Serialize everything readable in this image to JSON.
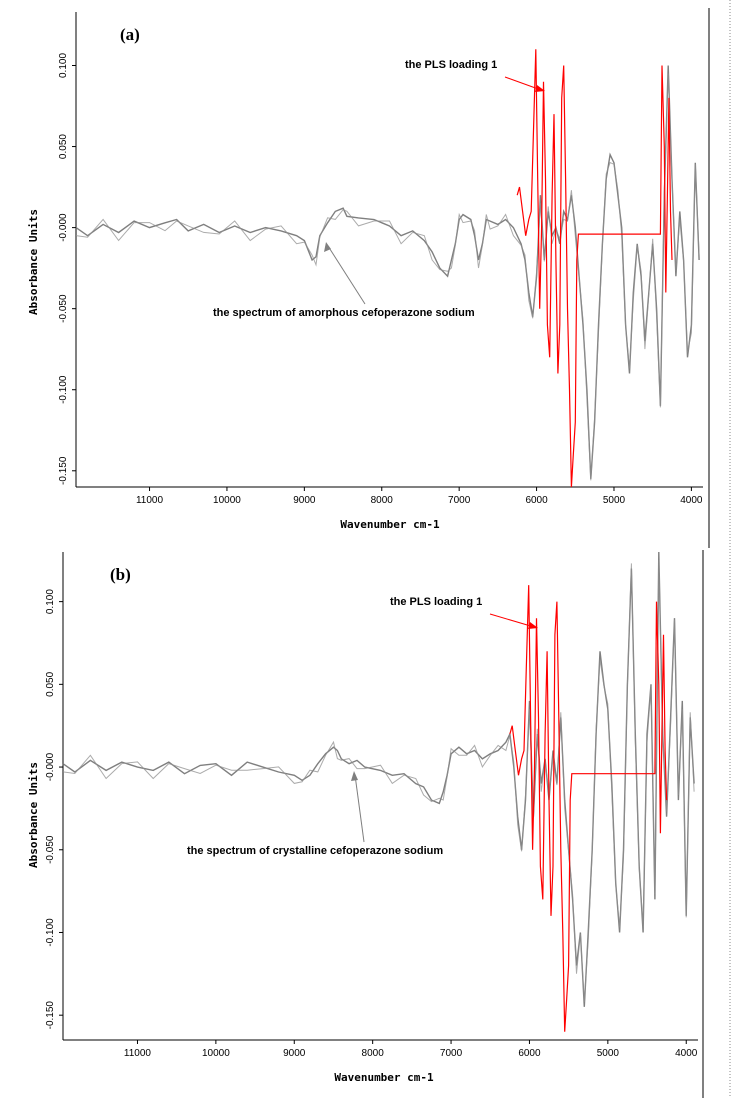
{
  "chart_data": [
    {
      "type": "line",
      "panel_label": "(a)",
      "xlabel": "Wavenumber cm-1",
      "ylabel": "Absorbance Units",
      "x_reversed": true,
      "xlim": [
        11950,
        3850
      ],
      "ylim": [
        -0.16,
        0.133
      ],
      "x_ticks": [
        11000,
        10000,
        9000,
        8000,
        7000,
        6000,
        5000,
        4000
      ],
      "x_tick_labels": [
        "11000",
        "10000",
        "9000",
        "8000",
        "7000",
        "6000",
        "5000",
        "4000"
      ],
      "y_ticks": [
        0.1,
        0.05,
        0.0,
        -0.05,
        -0.1,
        -0.15
      ],
      "y_tick_labels": [
        "0.100",
        "0.050",
        "-0.000",
        "-0.050",
        "-0.100",
        "-0.150"
      ],
      "grid": false,
      "colors": {
        "spectrum": "#7f7f7f",
        "loading": "#ff0000",
        "axis": "#000000"
      },
      "series": [
        {
          "role": "spectrum",
          "x": [
            11950,
            11800,
            11600,
            11400,
            11200,
            11000,
            10800,
            10650,
            10500,
            10300,
            10100,
            9900,
            9700,
            9500,
            9300,
            9100,
            9000,
            8900,
            8850,
            8800,
            8700,
            8600,
            8500,
            8450,
            8300,
            8100,
            7900,
            7750,
            7600,
            7450,
            7350,
            7250,
            7150,
            7100,
            7050,
            7000,
            6950,
            6850,
            6800,
            6750,
            6700,
            6650,
            6600,
            6500,
            6400,
            6300,
            6200,
            6150,
            6100,
            6050,
            6000,
            5950,
            5900,
            5850,
            5800,
            5750,
            5700,
            5650,
            5600,
            5550,
            5500,
            5450,
            5400,
            5350,
            5300,
            5250,
            5200,
            5150,
            5100,
            5050,
            5000,
            4950,
            4900,
            4850,
            4800,
            4750,
            4700,
            4650,
            4600,
            4550,
            4500,
            4450,
            4400,
            4350,
            4300,
            4250,
            4200,
            4150,
            4100,
            4050,
            4000,
            3950,
            3900
          ],
          "y": [
            0.0,
            -0.005,
            0.002,
            -0.003,
            0.004,
            0.0,
            0.003,
            0.005,
            -0.002,
            0.002,
            -0.003,
            0.001,
            -0.003,
            0.0,
            -0.002,
            -0.005,
            -0.008,
            -0.02,
            -0.018,
            -0.005,
            0.003,
            0.01,
            0.012,
            0.007,
            0.006,
            0.005,
            0.001,
            -0.005,
            -0.002,
            -0.008,
            -0.015,
            -0.025,
            -0.03,
            -0.02,
            -0.01,
            0.005,
            0.008,
            0.005,
            -0.005,
            -0.02,
            -0.01,
            0.005,
            0.004,
            0.002,
            0.005,
            0.0,
            -0.01,
            -0.02,
            -0.04,
            -0.055,
            -0.03,
            0.02,
            -0.02,
            0.01,
            -0.005,
            0.0,
            -0.01,
            0.01,
            0.005,
            0.02,
            0.0,
            -0.03,
            -0.06,
            -0.1,
            -0.155,
            -0.12,
            -0.06,
            -0.01,
            0.03,
            0.045,
            0.04,
            0.02,
            0.0,
            -0.06,
            -0.09,
            -0.04,
            -0.01,
            -0.03,
            -0.07,
            -0.04,
            -0.01,
            -0.05,
            -0.11,
            0.02,
            0.1,
            0.03,
            -0.03,
            0.01,
            -0.02,
            -0.08,
            -0.06,
            0.04,
            -0.02
          ]
        },
        {
          "role": "loading",
          "name": "the PLS loading 1",
          "x": [
            6250,
            6220,
            6180,
            6140,
            6100,
            6070,
            6040,
            6010,
            5985,
            5960,
            5935,
            5910,
            5885,
            5860,
            5830,
            5800,
            5775,
            5750,
            5725,
            5700,
            5675,
            5650,
            5625,
            5600,
            5575,
            5550,
            5525,
            5500,
            5480,
            5460,
            5450,
            5000,
            4500,
            4400,
            4380,
            4350,
            4330,
            4310,
            4290,
            4270,
            4250
          ],
          "y": [
            0.02,
            0.025,
            0.01,
            -0.005,
            0.005,
            0.01,
            0.06,
            0.11,
            0.03,
            -0.05,
            0.0,
            0.09,
            0.03,
            -0.06,
            -0.08,
            0.02,
            0.07,
            -0.02,
            -0.09,
            -0.06,
            0.08,
            0.1,
            0.03,
            -0.05,
            -0.1,
            -0.16,
            -0.14,
            -0.12,
            -0.02,
            -0.004,
            -0.004,
            -0.004,
            -0.004,
            -0.004,
            0.1,
            0.05,
            -0.04,
            0.02,
            0.08,
            0.01,
            -0.02
          ]
        }
      ],
      "annotations": [
        {
          "text": "the PLS loading 1",
          "target_series": "loading"
        },
        {
          "text": "the spectrum of amorphous cefoperazone sodium",
          "target_series": "spectrum"
        }
      ]
    },
    {
      "type": "line",
      "panel_label": "(b)",
      "xlabel": "Wavenumber cm-1",
      "ylabel": "Absorbance Units",
      "x_reversed": true,
      "xlim": [
        11950,
        3850
      ],
      "ylim": [
        -0.165,
        0.13
      ],
      "x_ticks": [
        11000,
        10000,
        9000,
        8000,
        7000,
        6000,
        5000,
        4000
      ],
      "x_tick_labels": [
        "11000",
        "10000",
        "9000",
        "8000",
        "7000",
        "6000",
        "5000",
        "4000"
      ],
      "y_ticks": [
        0.1,
        0.05,
        0.0,
        -0.05,
        -0.1,
        -0.15
      ],
      "y_tick_labels": [
        "0.100",
        "0.050",
        "-0.000",
        "-0.050",
        "-0.100",
        "-0.150"
      ],
      "grid": false,
      "colors": {
        "spectrum": "#7f7f7f",
        "loading": "#ff0000",
        "axis": "#000000"
      },
      "series": [
        {
          "role": "spectrum",
          "x": [
            11950,
            11800,
            11600,
            11400,
            11200,
            11000,
            10800,
            10600,
            10400,
            10200,
            10000,
            9800,
            9600,
            9400,
            9200,
            9000,
            8900,
            8800,
            8700,
            8600,
            8500,
            8450,
            8400,
            8300,
            8200,
            8100,
            7900,
            7750,
            7600,
            7450,
            7350,
            7250,
            7150,
            7100,
            7050,
            7000,
            6900,
            6800,
            6700,
            6600,
            6500,
            6400,
            6300,
            6250,
            6200,
            6150,
            6100,
            6050,
            6000,
            5950,
            5900,
            5850,
            5800,
            5750,
            5700,
            5650,
            5600,
            5550,
            5500,
            5450,
            5400,
            5350,
            5300,
            5250,
            5200,
            5150,
            5100,
            5050,
            5000,
            4950,
            4900,
            4850,
            4800,
            4750,
            4700,
            4650,
            4600,
            4550,
            4500,
            4450,
            4400,
            4350,
            4300,
            4250,
            4200,
            4150,
            4100,
            4050,
            4000,
            3950,
            3900
          ],
          "y": [
            0.002,
            -0.003,
            0.004,
            -0.002,
            0.003,
            0.0,
            -0.002,
            0.003,
            -0.004,
            0.001,
            0.002,
            -0.005,
            0.003,
            0.0,
            -0.003,
            -0.005,
            -0.008,
            -0.005,
            0.002,
            0.008,
            0.012,
            0.01,
            0.005,
            0.002,
            0.004,
            0.0,
            -0.002,
            -0.005,
            -0.004,
            -0.01,
            -0.012,
            -0.02,
            -0.022,
            -0.015,
            -0.005,
            0.008,
            0.012,
            0.008,
            0.01,
            0.005,
            0.008,
            0.01,
            0.015,
            0.02,
            0.0,
            -0.03,
            -0.05,
            -0.02,
            0.04,
            -0.03,
            0.02,
            -0.01,
            0.005,
            -0.02,
            0.01,
            -0.01,
            0.03,
            -0.02,
            -0.05,
            -0.08,
            -0.12,
            -0.1,
            -0.145,
            -0.1,
            -0.05,
            0.02,
            0.07,
            0.05,
            0.035,
            -0.01,
            -0.07,
            -0.1,
            -0.05,
            0.05,
            0.12,
            0.02,
            -0.06,
            -0.1,
            0.02,
            0.05,
            -0.08,
            0.13,
            0.02,
            -0.03,
            0.03,
            0.09,
            -0.02,
            0.04,
            -0.09,
            0.03,
            -0.01
          ]
        },
        {
          "role": "loading",
          "name": "the PLS loading 1",
          "x": [
            6250,
            6220,
            6180,
            6140,
            6100,
            6070,
            6040,
            6010,
            5985,
            5960,
            5935,
            5910,
            5885,
            5860,
            5830,
            5800,
            5775,
            5750,
            5725,
            5700,
            5675,
            5650,
            5625,
            5600,
            5575,
            5550,
            5525,
            5500,
            5480,
            5460,
            5450,
            5000,
            4500,
            4400,
            4380,
            4350,
            4330,
            4310,
            4290,
            4270,
            4250
          ],
          "y": [
            0.02,
            0.025,
            0.01,
            -0.005,
            0.005,
            0.01,
            0.06,
            0.11,
            0.03,
            -0.05,
            0.0,
            0.09,
            0.03,
            -0.06,
            -0.08,
            0.02,
            0.07,
            -0.02,
            -0.09,
            -0.06,
            0.08,
            0.1,
            0.03,
            -0.05,
            -0.1,
            -0.16,
            -0.14,
            -0.12,
            -0.02,
            -0.004,
            -0.004,
            -0.004,
            -0.004,
            -0.004,
            0.1,
            0.05,
            -0.04,
            0.02,
            0.08,
            0.01,
            -0.02
          ]
        }
      ],
      "annotations": [
        {
          "text": "the PLS loading 1",
          "target_series": "loading"
        },
        {
          "text": "the spectrum of crystalline cefoperazone sodium",
          "target_series": "spectrum"
        }
      ]
    }
  ]
}
